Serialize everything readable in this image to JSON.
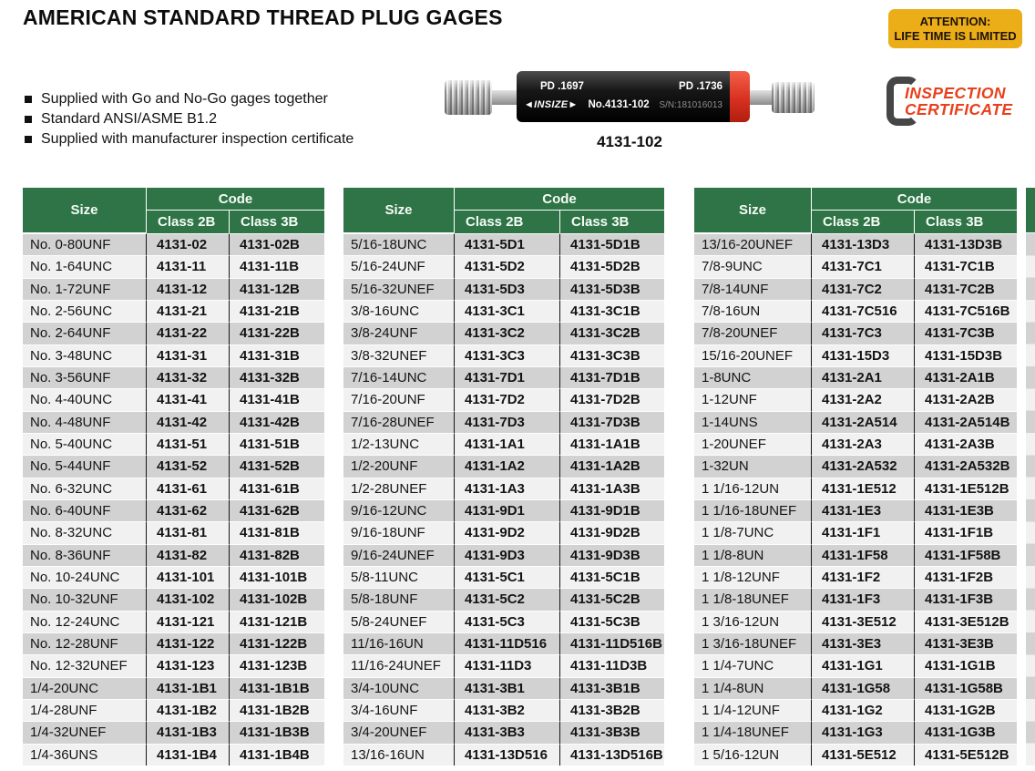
{
  "header": {
    "title": "AMERICAN STANDARD THREAD PLUG GAGES",
    "attention": {
      "line1": "ATTENTION:",
      "line2": "LIFE TIME IS LIMITED"
    }
  },
  "features": [
    "Supplied with Go and No-Go gages together",
    "Standard ANSI/ASME B1.2",
    "Supplied with manufacturer inspection certificate"
  ],
  "product": {
    "pd_left": "PD .1697",
    "pd_right": "PD .1736",
    "brand_logo": "◄INSIZE►",
    "model_no": "No.4131-102",
    "serial": "S/N:181016013",
    "caption": "4131-102"
  },
  "certificate": {
    "line1": "INSPECTION",
    "line2": "CERTIFICATE"
  },
  "table_header": {
    "size": "Size",
    "code": "Code",
    "class_2b": "Class 2B",
    "class_3b": "Class 3B"
  },
  "tables": [
    {
      "rows": [
        [
          "No. 0-80UNF",
          "4131-02",
          "4131-02B"
        ],
        [
          "No. 1-64UNC",
          "4131-11",
          "4131-11B"
        ],
        [
          "No. 1-72UNF",
          "4131-12",
          "4131-12B"
        ],
        [
          "No. 2-56UNC",
          "4131-21",
          "4131-21B"
        ],
        [
          "No. 2-64UNF",
          "4131-22",
          "4131-22B"
        ],
        [
          "No. 3-48UNC",
          "4131-31",
          "4131-31B"
        ],
        [
          "No. 3-56UNF",
          "4131-32",
          "4131-32B"
        ],
        [
          "No. 4-40UNC",
          "4131-41",
          "4131-41B"
        ],
        [
          "No. 4-48UNF",
          "4131-42",
          "4131-42B"
        ],
        [
          "No. 5-40UNC",
          "4131-51",
          "4131-51B"
        ],
        [
          "No. 5-44UNF",
          "4131-52",
          "4131-52B"
        ],
        [
          "No. 6-32UNC",
          "4131-61",
          "4131-61B"
        ],
        [
          "No. 6-40UNF",
          "4131-62",
          "4131-62B"
        ],
        [
          "No. 8-32UNC",
          "4131-81",
          "4131-81B"
        ],
        [
          "No. 8-36UNF",
          "4131-82",
          "4131-82B"
        ],
        [
          "No. 10-24UNC",
          "4131-101",
          "4131-101B"
        ],
        [
          "No. 10-32UNF",
          "4131-102",
          "4131-102B"
        ],
        [
          "No. 12-24UNC",
          "4131-121",
          "4131-121B"
        ],
        [
          "No. 12-28UNF",
          "4131-122",
          "4131-122B"
        ],
        [
          "No. 12-32UNEF",
          "4131-123",
          "4131-123B"
        ],
        [
          "1/4-20UNC",
          "4131-1B1",
          "4131-1B1B"
        ],
        [
          "1/4-28UNF",
          "4131-1B2",
          "4131-1B2B"
        ],
        [
          "1/4-32UNEF",
          "4131-1B3",
          "4131-1B3B"
        ],
        [
          "1/4-36UNS",
          "4131-1B4",
          "4131-1B4B"
        ]
      ]
    },
    {
      "rows": [
        [
          "5/16-18UNC",
          "4131-5D1",
          "4131-5D1B"
        ],
        [
          "5/16-24UNF",
          "4131-5D2",
          "4131-5D2B"
        ],
        [
          "5/16-32UNEF",
          "4131-5D3",
          "4131-5D3B"
        ],
        [
          "3/8-16UNC",
          "4131-3C1",
          "4131-3C1B"
        ],
        [
          "3/8-24UNF",
          "4131-3C2",
          "4131-3C2B"
        ],
        [
          "3/8-32UNEF",
          "4131-3C3",
          "4131-3C3B"
        ],
        [
          "7/16-14UNC",
          "4131-7D1",
          "4131-7D1B"
        ],
        [
          "7/16-20UNF",
          "4131-7D2",
          "4131-7D2B"
        ],
        [
          "7/16-28UNEF",
          "4131-7D3",
          "4131-7D3B"
        ],
        [
          "1/2-13UNC",
          "4131-1A1",
          "4131-1A1B"
        ],
        [
          "1/2-20UNF",
          "4131-1A2",
          "4131-1A2B"
        ],
        [
          "1/2-28UNEF",
          "4131-1A3",
          "4131-1A3B"
        ],
        [
          "9/16-12UNC",
          "4131-9D1",
          "4131-9D1B"
        ],
        [
          "9/16-18UNF",
          "4131-9D2",
          "4131-9D2B"
        ],
        [
          "9/16-24UNEF",
          "4131-9D3",
          "4131-9D3B"
        ],
        [
          "5/8-11UNC",
          "4131-5C1",
          "4131-5C1B"
        ],
        [
          "5/8-18UNF",
          "4131-5C2",
          "4131-5C2B"
        ],
        [
          "5/8-24UNEF",
          "4131-5C3",
          "4131-5C3B"
        ],
        [
          "11/16-16UN",
          "4131-11D516",
          "4131-11D516B"
        ],
        [
          "11/16-24UNEF",
          "4131-11D3",
          "4131-11D3B"
        ],
        [
          "3/4-10UNC",
          "4131-3B1",
          "4131-3B1B"
        ],
        [
          "3/4-16UNF",
          "4131-3B2",
          "4131-3B2B"
        ],
        [
          "3/4-20UNEF",
          "4131-3B3",
          "4131-3B3B"
        ],
        [
          "13/16-16UN",
          "4131-13D516",
          "4131-13D516B"
        ]
      ]
    },
    {
      "rows": [
        [
          "13/16-20UNEF",
          "4131-13D3",
          "4131-13D3B"
        ],
        [
          "7/8-9UNC",
          "4131-7C1",
          "4131-7C1B"
        ],
        [
          "7/8-14UNF",
          "4131-7C2",
          "4131-7C2B"
        ],
        [
          "7/8-16UN",
          "4131-7C516",
          "4131-7C516B"
        ],
        [
          "7/8-20UNEF",
          "4131-7C3",
          "4131-7C3B"
        ],
        [
          "15/16-20UNEF",
          "4131-15D3",
          "4131-15D3B"
        ],
        [
          "1-8UNC",
          "4131-2A1",
          "4131-2A1B"
        ],
        [
          "1-12UNF",
          "4131-2A2",
          "4131-2A2B"
        ],
        [
          "1-14UNS",
          "4131-2A514",
          "4131-2A514B"
        ],
        [
          "1-20UNEF",
          "4131-2A3",
          "4131-2A3B"
        ],
        [
          "1-32UN",
          "4131-2A532",
          "4131-2A532B"
        ],
        [
          "1 1/16-12UN",
          "4131-1E512",
          "4131-1E512B"
        ],
        [
          "1 1/16-18UNEF",
          "4131-1E3",
          "4131-1E3B"
        ],
        [
          "1 1/8-7UNC",
          "4131-1F1",
          "4131-1F1B"
        ],
        [
          "1 1/8-8UN",
          "4131-1F58",
          "4131-1F58B"
        ],
        [
          "1 1/8-12UNF",
          "4131-1F2",
          "4131-1F2B"
        ],
        [
          "1 1/8-18UNEF",
          "4131-1F3",
          "4131-1F3B"
        ],
        [
          "1 3/16-12UN",
          "4131-3E512",
          "4131-3E512B"
        ],
        [
          "1 3/16-18UNEF",
          "4131-3E3",
          "4131-3E3B"
        ],
        [
          "1 1/4-7UNC",
          "4131-1G1",
          "4131-1G1B"
        ],
        [
          "1 1/4-8UN",
          "4131-1G58",
          "4131-1G58B"
        ],
        [
          "1 1/4-12UNF",
          "4131-1G2",
          "4131-1G2B"
        ],
        [
          "1 1/4-18UNEF",
          "4131-1G3",
          "4131-1G3B"
        ],
        [
          "1 5/16-12UN",
          "4131-5E512",
          "4131-5E512B"
        ]
      ]
    }
  ],
  "colors": {
    "table_header_green": "#2E7446",
    "row_stripe_gray": "#D2D2D2",
    "row_stripe_light": "#F1F1F1",
    "attention_yellow": "#EBAD18",
    "certificate_red": "#E8401C",
    "gage_red_band": "#D93020"
  }
}
